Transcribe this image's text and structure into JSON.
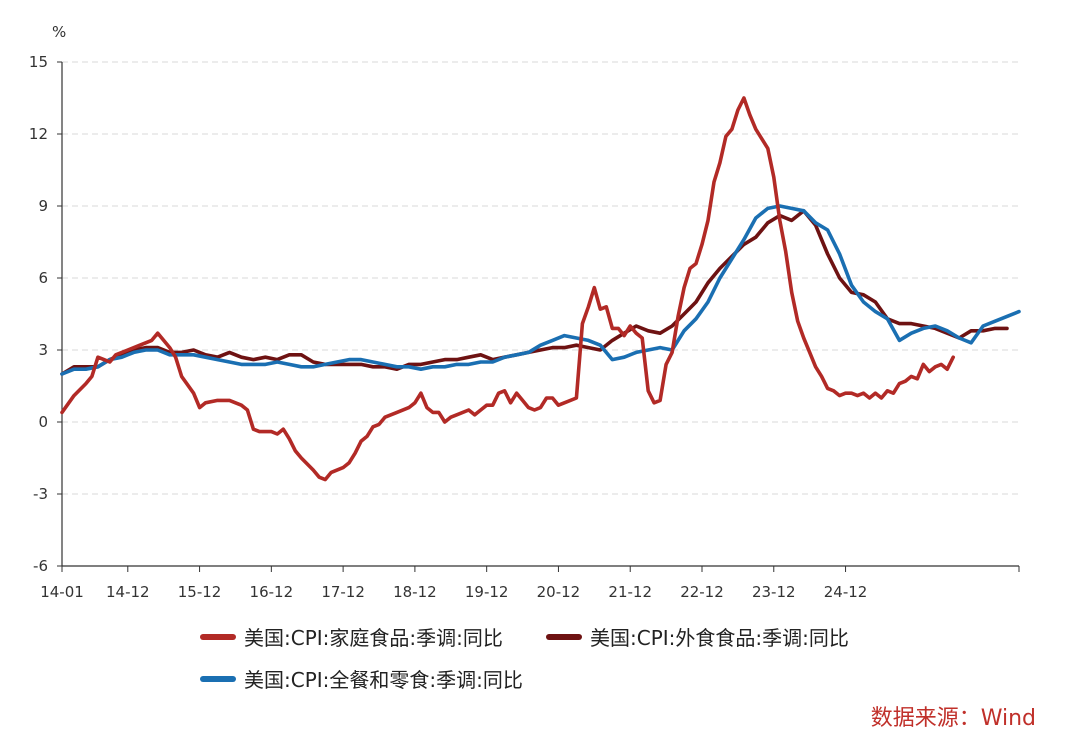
{
  "chart_data": {
    "type": "line",
    "unit": "%",
    "ylim": [
      -6,
      15
    ],
    "yticks": [
      "15",
      "12",
      "9",
      "6",
      "3",
      "0",
      "-3",
      "-6"
    ],
    "xticks": [
      "14-01",
      "14-12",
      "15-12",
      "16-12",
      "17-12",
      "18-12",
      "19-12",
      "20-12",
      "21-12",
      "22-12",
      "23-12",
      "24-12"
    ],
    "x_index_range": [
      0,
      136
    ],
    "grid": "horizontal-dashed",
    "legend_position": "bottom",
    "source": "数据来源：Wind",
    "series": [
      {
        "name": "美国:CPI:家庭食品:季调:同比",
        "color": "#b22a26",
        "points": [
          [
            0,
            0.4
          ],
          [
            2,
            1.1
          ],
          [
            4,
            1.6
          ],
          [
            5,
            1.9
          ],
          [
            6,
            2.7
          ],
          [
            7,
            2.6
          ],
          [
            8,
            2.5
          ],
          [
            9,
            2.8
          ],
          [
            11,
            3.0
          ],
          [
            13,
            3.2
          ],
          [
            15,
            3.4
          ],
          [
            16,
            3.7
          ],
          [
            17,
            3.4
          ],
          [
            18,
            3.1
          ],
          [
            19,
            2.7
          ],
          [
            20,
            1.9
          ],
          [
            22,
            1.2
          ],
          [
            23,
            0.6
          ],
          [
            24,
            0.8
          ],
          [
            26,
            0.9
          ],
          [
            28,
            0.9
          ],
          [
            30,
            0.7
          ],
          [
            31,
            0.5
          ],
          [
            32,
            -0.3
          ],
          [
            33,
            -0.4
          ],
          [
            35,
            -0.4
          ],
          [
            36,
            -0.5
          ],
          [
            37,
            -0.3
          ],
          [
            38,
            -0.7
          ],
          [
            39,
            -1.2
          ],
          [
            40,
            -1.5
          ],
          [
            42,
            -2.0
          ],
          [
            43,
            -2.3
          ],
          [
            44,
            -2.4
          ],
          [
            45,
            -2.1
          ],
          [
            47,
            -1.9
          ],
          [
            48,
            -1.7
          ],
          [
            49,
            -1.3
          ],
          [
            50,
            -0.8
          ],
          [
            51,
            -0.6
          ],
          [
            52,
            -0.2
          ],
          [
            53,
            -0.1
          ],
          [
            54,
            0.2
          ],
          [
            56,
            0.4
          ],
          [
            58,
            0.6
          ],
          [
            59,
            0.8
          ],
          [
            60,
            1.2
          ],
          [
            61,
            0.6
          ],
          [
            62,
            0.4
          ],
          [
            63,
            0.4
          ],
          [
            64,
            0.0
          ],
          [
            65,
            0.2
          ],
          [
            66,
            0.3
          ],
          [
            68,
            0.5
          ],
          [
            69,
            0.3
          ],
          [
            70,
            0.5
          ],
          [
            71,
            0.7
          ],
          [
            72,
            0.7
          ],
          [
            73,
            1.2
          ],
          [
            74,
            1.3
          ],
          [
            75,
            0.8
          ],
          [
            76,
            1.2
          ],
          [
            77,
            0.9
          ],
          [
            78,
            0.6
          ],
          [
            79,
            0.5
          ],
          [
            80,
            0.6
          ],
          [
            81,
            1.0
          ],
          [
            82,
            1.0
          ],
          [
            83,
            0.7
          ],
          [
            84,
            0.8
          ],
          [
            86,
            1.0
          ],
          [
            87,
            4.1
          ],
          [
            88,
            4.8
          ],
          [
            89,
            5.6
          ],
          [
            90,
            4.7
          ],
          [
            91,
            4.8
          ],
          [
            92,
            3.9
          ],
          [
            93,
            3.9
          ],
          [
            94,
            3.6
          ],
          [
            95,
            4.0
          ],
          [
            96,
            3.7
          ],
          [
            97,
            3.5
          ],
          [
            98,
            1.3
          ],
          [
            99,
            0.8
          ],
          [
            100,
            0.9
          ],
          [
            101,
            2.4
          ],
          [
            102,
            2.9
          ],
          [
            103,
            4.4
          ],
          [
            104,
            5.6
          ],
          [
            105,
            6.4
          ],
          [
            106,
            6.6
          ],
          [
            107,
            7.4
          ],
          [
            108,
            8.4
          ],
          [
            109,
            10.0
          ],
          [
            110,
            10.8
          ],
          [
            111,
            11.9
          ],
          [
            112,
            12.2
          ],
          [
            113,
            13.0
          ],
          [
            114,
            13.5
          ],
          [
            115,
            12.8
          ],
          [
            116,
            12.2
          ],
          [
            117,
            11.8
          ],
          [
            118,
            11.4
          ],
          [
            119,
            10.2
          ],
          [
            120,
            8.4
          ],
          [
            121,
            7.1
          ],
          [
            122,
            5.4
          ],
          [
            123,
            4.2
          ],
          [
            124,
            3.5
          ],
          [
            125,
            2.9
          ],
          [
            126,
            2.3
          ],
          [
            127,
            1.9
          ],
          [
            128,
            1.4
          ],
          [
            129,
            1.3
          ],
          [
            130,
            1.1
          ],
          [
            131,
            1.2
          ],
          [
            132,
            1.2
          ],
          [
            133,
            1.1
          ],
          [
            134,
            1.2
          ],
          [
            135,
            1.0
          ],
          [
            136,
            1.2
          ],
          [
            137,
            1.0
          ],
          [
            138,
            1.3
          ],
          [
            139,
            1.2
          ],
          [
            140,
            1.6
          ],
          [
            141,
            1.7
          ],
          [
            142,
            1.9
          ],
          [
            143,
            1.8
          ],
          [
            144,
            2.4
          ],
          [
            145,
            2.1
          ],
          [
            146,
            2.3
          ],
          [
            147,
            2.4
          ],
          [
            148,
            2.2
          ],
          [
            149,
            2.7
          ]
        ]
      },
      {
        "name": "美国:CPI:外食食品:季调:同比",
        "color": "#6e1212",
        "points": [
          [
            0,
            2.0
          ],
          [
            2,
            2.3
          ],
          [
            4,
            2.3
          ],
          [
            6,
            2.3
          ],
          [
            8,
            2.6
          ],
          [
            10,
            2.8
          ],
          [
            12,
            3.0
          ],
          [
            14,
            3.1
          ],
          [
            16,
            3.1
          ],
          [
            18,
            2.9
          ],
          [
            20,
            2.9
          ],
          [
            22,
            3.0
          ],
          [
            24,
            2.8
          ],
          [
            26,
            2.7
          ],
          [
            28,
            2.9
          ],
          [
            30,
            2.7
          ],
          [
            32,
            2.6
          ],
          [
            34,
            2.7
          ],
          [
            36,
            2.6
          ],
          [
            38,
            2.8
          ],
          [
            40,
            2.8
          ],
          [
            42,
            2.5
          ],
          [
            44,
            2.4
          ],
          [
            46,
            2.4
          ],
          [
            48,
            2.4
          ],
          [
            50,
            2.4
          ],
          [
            52,
            2.3
          ],
          [
            54,
            2.3
          ],
          [
            56,
            2.2
          ],
          [
            58,
            2.4
          ],
          [
            60,
            2.4
          ],
          [
            62,
            2.5
          ],
          [
            64,
            2.6
          ],
          [
            66,
            2.6
          ],
          [
            68,
            2.7
          ],
          [
            70,
            2.8
          ],
          [
            72,
            2.6
          ],
          [
            74,
            2.7
          ],
          [
            76,
            2.8
          ],
          [
            78,
            2.9
          ],
          [
            80,
            3.0
          ],
          [
            82,
            3.1
          ],
          [
            84,
            3.1
          ],
          [
            86,
            3.2
          ],
          [
            88,
            3.1
          ],
          [
            90,
            3.0
          ],
          [
            92,
            3.4
          ],
          [
            94,
            3.7
          ],
          [
            96,
            4.0
          ],
          [
            98,
            3.8
          ],
          [
            100,
            3.7
          ],
          [
            102,
            4.0
          ],
          [
            104,
            4.5
          ],
          [
            106,
            5.0
          ],
          [
            108,
            5.8
          ],
          [
            110,
            6.4
          ],
          [
            112,
            6.9
          ],
          [
            114,
            7.4
          ],
          [
            116,
            7.7
          ],
          [
            118,
            8.3
          ],
          [
            120,
            8.6
          ],
          [
            122,
            8.4
          ],
          [
            124,
            8.8
          ],
          [
            126,
            8.2
          ],
          [
            128,
            7.0
          ],
          [
            130,
            6.0
          ],
          [
            132,
            5.4
          ],
          [
            134,
            5.3
          ],
          [
            136,
            5.0
          ],
          [
            138,
            4.3
          ],
          [
            140,
            4.1
          ],
          [
            142,
            4.1
          ],
          [
            144,
            4.0
          ],
          [
            146,
            3.9
          ],
          [
            148,
            3.7
          ],
          [
            150,
            3.5
          ],
          [
            152,
            3.8
          ],
          [
            154,
            3.8
          ],
          [
            156,
            3.9
          ],
          [
            158,
            3.9
          ]
        ]
      },
      {
        "name": "美国:CPI:全餐和零食:季调:同比",
        "color": "#1a6fb2",
        "points": [
          [
            0,
            2.0
          ],
          [
            2,
            2.2
          ],
          [
            4,
            2.2
          ],
          [
            6,
            2.3
          ],
          [
            8,
            2.6
          ],
          [
            10,
            2.7
          ],
          [
            12,
            2.9
          ],
          [
            14,
            3.0
          ],
          [
            16,
            3.0
          ],
          [
            18,
            2.8
          ],
          [
            20,
            2.8
          ],
          [
            22,
            2.8
          ],
          [
            24,
            2.7
          ],
          [
            26,
            2.6
          ],
          [
            28,
            2.5
          ],
          [
            30,
            2.4
          ],
          [
            32,
            2.4
          ],
          [
            34,
            2.4
          ],
          [
            36,
            2.5
          ],
          [
            38,
            2.4
          ],
          [
            40,
            2.3
          ],
          [
            42,
            2.3
          ],
          [
            44,
            2.4
          ],
          [
            46,
            2.5
          ],
          [
            48,
            2.6
          ],
          [
            50,
            2.6
          ],
          [
            52,
            2.5
          ],
          [
            54,
            2.4
          ],
          [
            56,
            2.3
          ],
          [
            58,
            2.3
          ],
          [
            60,
            2.2
          ],
          [
            62,
            2.3
          ],
          [
            64,
            2.3
          ],
          [
            66,
            2.4
          ],
          [
            68,
            2.4
          ],
          [
            70,
            2.5
          ],
          [
            72,
            2.5
          ],
          [
            74,
            2.7
          ],
          [
            76,
            2.8
          ],
          [
            78,
            2.9
          ],
          [
            80,
            3.2
          ],
          [
            82,
            3.4
          ],
          [
            84,
            3.6
          ],
          [
            86,
            3.5
          ],
          [
            88,
            3.4
          ],
          [
            90,
            3.2
          ],
          [
            92,
            2.6
          ],
          [
            94,
            2.7
          ],
          [
            96,
            2.9
          ],
          [
            98,
            3.0
          ],
          [
            100,
            3.1
          ],
          [
            102,
            3.0
          ],
          [
            104,
            3.8
          ],
          [
            106,
            4.3
          ],
          [
            108,
            5.0
          ],
          [
            110,
            6.0
          ],
          [
            112,
            6.8
          ],
          [
            114,
            7.6
          ],
          [
            116,
            8.5
          ],
          [
            118,
            8.9
          ],
          [
            120,
            9.0
          ],
          [
            122,
            8.9
          ],
          [
            124,
            8.8
          ],
          [
            126,
            8.3
          ],
          [
            128,
            8.0
          ],
          [
            130,
            7.0
          ],
          [
            132,
            5.7
          ],
          [
            134,
            5.0
          ],
          [
            136,
            4.6
          ],
          [
            138,
            4.3
          ],
          [
            140,
            3.4
          ],
          [
            142,
            3.7
          ],
          [
            144,
            3.9
          ],
          [
            146,
            4.0
          ],
          [
            148,
            3.8
          ],
          [
            150,
            3.5
          ],
          [
            152,
            3.3
          ],
          [
            154,
            4.0
          ],
          [
            156,
            4.2
          ],
          [
            158,
            4.4
          ],
          [
            160,
            4.6
          ]
        ]
      }
    ]
  }
}
